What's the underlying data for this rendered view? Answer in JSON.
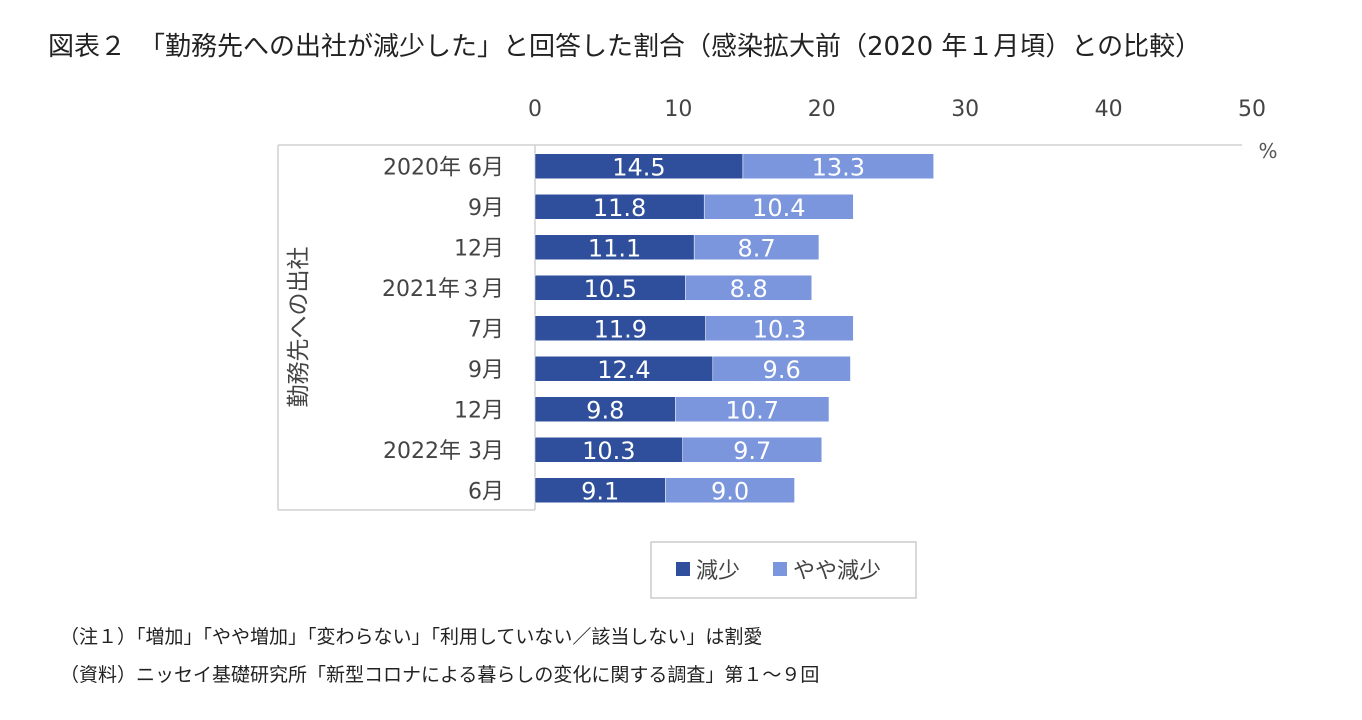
{
  "title": "図表２　「勤務先への出社が減少した」と回答した割合（感染拡大前（2020 年１月頃）との比較）",
  "notes": [
    "（注１）「増加」「やや増加」「変わらない」「利用していない／該当しない」は割愛",
    "（資料）ニッセイ基礎研究所「新型コロナによる暮らしの変化に関する調査」第１～９回"
  ],
  "chart_data": {
    "type": "bar",
    "orientation": "horizontal",
    "stacked": true,
    "title": "図表２　「勤務先への出社が減少した」と回答した割合（感染拡大前（2020 年１月頃）との比較）",
    "categories": [
      "2020年 6月",
      "9月",
      "12月",
      "2021年３月",
      "7月",
      "9月",
      "12月",
      "2022年 3月",
      "6月"
    ],
    "series": [
      {
        "name": "減少",
        "color": "#2f4f9c",
        "values": [
          14.5,
          11.8,
          11.1,
          10.5,
          11.9,
          12.4,
          9.8,
          10.3,
          9.1
        ]
      },
      {
        "name": "やや減少",
        "color": "#7b96dc",
        "values": [
          13.3,
          10.4,
          8.7,
          8.8,
          10.3,
          9.6,
          10.7,
          9.7,
          9.0
        ]
      }
    ],
    "xlim": [
      0,
      50
    ],
    "xticks": [
      0,
      10,
      20,
      30,
      40,
      50
    ],
    "xlabel_unit": "%",
    "ylabel": "勤務先への出社",
    "legend": {
      "position": "bottom",
      "entries": [
        "減少",
        "やや減少"
      ]
    }
  }
}
